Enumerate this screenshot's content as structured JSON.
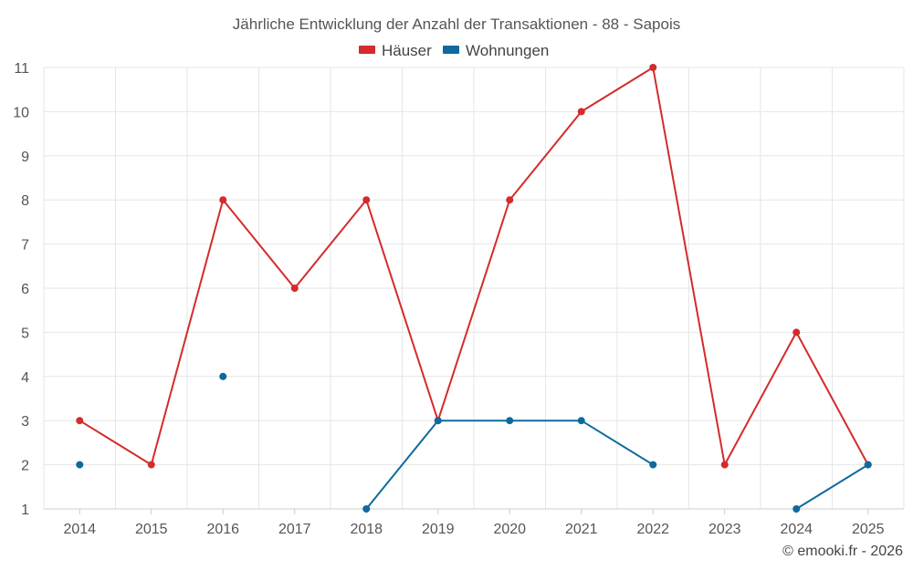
{
  "chart_data": {
    "type": "line",
    "title": "Jährliche Entwicklung der Anzahl der Transaktionen - 88 - Sapois",
    "categories": [
      "2014",
      "2015",
      "2016",
      "2017",
      "2018",
      "2019",
      "2020",
      "2021",
      "2022",
      "2023",
      "2024",
      "2025"
    ],
    "series": [
      {
        "name": "Häuser",
        "color": "#d42b2b",
        "values": [
          3,
          2,
          8,
          6,
          8,
          3,
          8,
          10,
          11,
          2,
          5,
          2
        ]
      },
      {
        "name": "Wohnungen",
        "color": "#0e6a9e",
        "values": [
          2,
          null,
          4,
          null,
          1,
          3,
          3,
          3,
          2,
          null,
          1,
          2
        ]
      }
    ],
    "ylim": [
      1,
      11
    ],
    "yticks": [
      "1",
      "2",
      "3",
      "4",
      "5",
      "6",
      "7",
      "8",
      "9",
      "10",
      "11"
    ],
    "xlabel": "",
    "ylabel": "",
    "grid": true,
    "legend_position": "top-center"
  },
  "credit": "© emooki.fr - 2026"
}
